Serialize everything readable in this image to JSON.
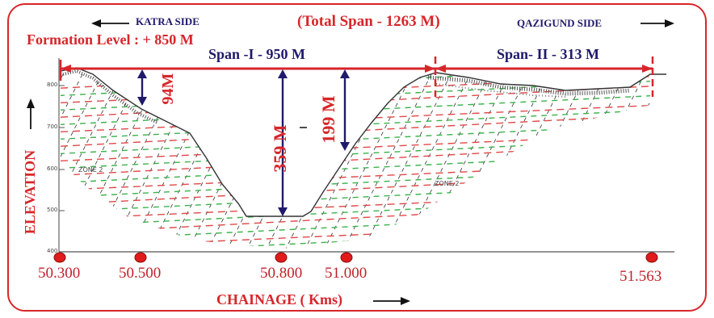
{
  "header": {
    "left_side": "KATRA SIDE",
    "total_span": "(Total Span - 1263 M)",
    "right_side": "QAZIGUND  SIDE",
    "formation_level": "Formation Level : +  850 M"
  },
  "spans": {
    "span1": "Span -I - 950 M",
    "span2": "Span- II - 313 M"
  },
  "depths": {
    "d1": "94M",
    "d2": "359 M",
    "d3": "199 M"
  },
  "axes": {
    "y_label": "ELEVATION",
    "x_label": "CHAINAGE ( Kms)",
    "y_ticks": [
      "800",
      "700",
      "600",
      "500",
      "400"
    ]
  },
  "zones": {
    "left": "ZONE 2",
    "right": "ZONE 2"
  },
  "chainage_points": [
    "50.300",
    "50.500",
    "50.800",
    "51.000",
    "51.563"
  ],
  "colors": {
    "red": "#d7262a",
    "navy": "#1f1a6b",
    "marker": "#e01b1b"
  }
}
